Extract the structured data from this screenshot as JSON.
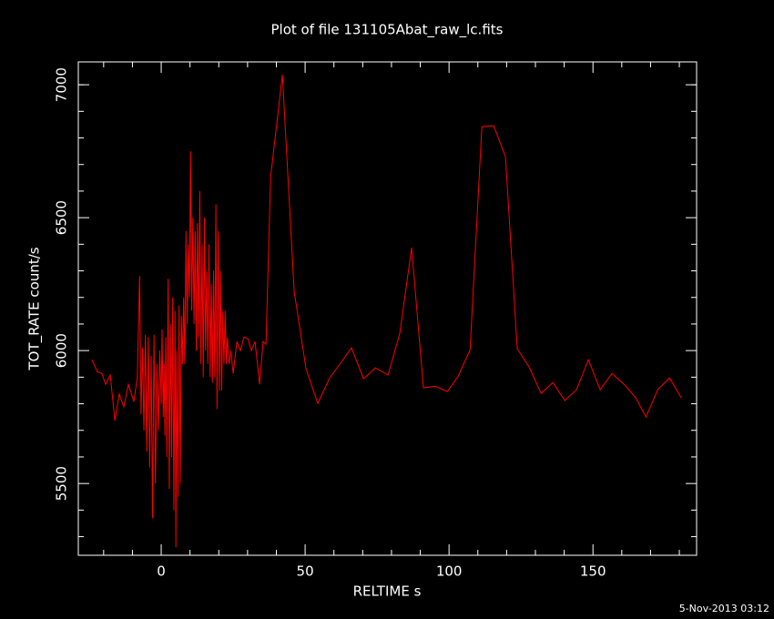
{
  "chart_data": {
    "type": "line",
    "title": "Plot of file 131105Abat_raw_lc.fits",
    "x_label": "RELTIME  s",
    "y_label": "TOT_RATE  count/s",
    "timestamp": "5-Nov-2013 03:12",
    "color": "#ff0000",
    "xlim": [
      -28.8,
      186
    ],
    "ylim": [
      5230,
      7086
    ],
    "xticks": [
      0,
      50,
      100,
      150
    ],
    "yticks": [
      5500,
      6000,
      6500,
      7000
    ],
    "xminorticks": [
      -20,
      -10,
      10,
      20,
      30,
      40,
      60,
      70,
      80,
      90,
      110,
      120,
      130,
      140,
      160,
      170,
      180
    ],
    "yminorticks": [
      5300,
      5400,
      5600,
      5700,
      5800,
      5900,
      6100,
      6200,
      6300,
      6400,
      6600,
      6700,
      6800,
      6900,
      7000
    ],
    "x": [
      -24.1,
      -22.2,
      -20.6,
      -19.3,
      -17.7,
      -16.1,
      -14.6,
      -13.0,
      -11.4,
      -9.5,
      -8.3,
      -7.5,
      -7.0,
      -6.5,
      -6.0,
      -5.5,
      -5.0,
      -4.5,
      -4.0,
      -3.5,
      -3.0,
      -2.5,
      -2.0,
      -1.5,
      -1.0,
      -0.5,
      0,
      0.3,
      0.7,
      1.0,
      1.3,
      1.6,
      2.0,
      2.4,
      2.8,
      3.2,
      3.6,
      4.0,
      4.4,
      4.8,
      5.1,
      5.4,
      5.8,
      6.2,
      6.6,
      7.0,
      7.4,
      7.8,
      8.2,
      8.6,
      9.0,
      9.4,
      9.8,
      10.2,
      10.6,
      11.0,
      11.4,
      11.8,
      12.2,
      12.6,
      13.0,
      13.4,
      13.8,
      14.2,
      14.6,
      15.0,
      15.4,
      15.8,
      16.2,
      16.6,
      17.0,
      17.4,
      17.8,
      18.2,
      18.6,
      19.0,
      19.4,
      19.8,
      20.2,
      20.6,
      21.0,
      21.4,
      21.8,
      22.2,
      22.6,
      23.0,
      23.6,
      24.2,
      25.0,
      26.3,
      27.5,
      28.8,
      30.1,
      31.3,
      32.6,
      34.2,
      35.4,
      36.4,
      38.0,
      42.1,
      46.2,
      50.3,
      54.4,
      58.5,
      62.7,
      66.1,
      70.3,
      74.4,
      78.8,
      82.9,
      87.0,
      91.1,
      95.3,
      99.4,
      103.2,
      107.3,
      111.4,
      115.5,
      119.6,
      123.7,
      127.8,
      132.0,
      136.1,
      140.2,
      144.3,
      148.4,
      152.5,
      156.6,
      160.8,
      164.9,
      168.4,
      172.5,
      176.6,
      180.7
    ],
    "values": [
      5966,
      5921,
      5914,
      5873,
      5908,
      5736,
      5836,
      5788,
      5873,
      5808,
      5900,
      6280,
      5760,
      6010,
      5700,
      6060,
      5620,
      6050,
      5560,
      5980,
      5370,
      6060,
      5500,
      5950,
      5700,
      6000,
      5800,
      6080,
      5750,
      5950,
      5680,
      6050,
      5600,
      6270,
      5480,
      6100,
      5600,
      6200,
      5400,
      6150,
      5260,
      6000,
      5450,
      6170,
      5500,
      6130,
      5950,
      6200,
      5950,
      6450,
      6100,
      6400,
      6200,
      6750,
      6150,
      6500,
      6100,
      6450,
      6000,
      6480,
      6050,
      6600,
      5950,
      6400,
      5900,
      6500,
      6000,
      6300,
      5950,
      6400,
      5900,
      6250,
      5880,
      6300,
      5900,
      6550,
      5780,
      6450,
      5850,
      6300,
      5850,
      6150,
      5950,
      6150,
      5950,
      6050,
      5950,
      6000,
      5914,
      6034,
      6000,
      6051,
      6045,
      6000,
      6034,
      5873,
      6034,
      6024,
      6651,
      7038,
      6223,
      5932,
      5801,
      5897,
      5959,
      6010,
      5894,
      5935,
      5908,
      6065,
      6387,
      5860,
      5866,
      5846,
      5904,
      6003,
      6842,
      6846,
      6729,
      6007,
      5938,
      5839,
      5880,
      5812,
      5853,
      5966,
      5853,
      5914,
      5873,
      5822,
      5750,
      5853,
      5897,
      5822
    ]
  }
}
